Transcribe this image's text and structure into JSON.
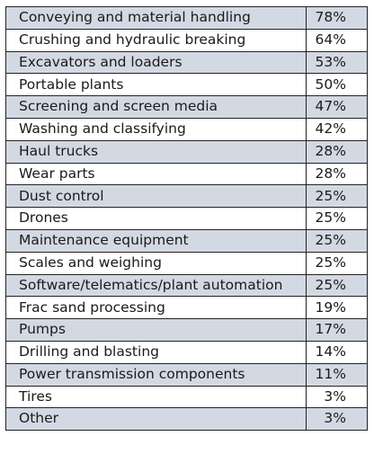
{
  "chart_data": {
    "type": "table",
    "colors": {
      "row_shade": "#d3d9e3",
      "row_plain": "#ffffff",
      "border": "#222222"
    },
    "rows": [
      {
        "label": "Conveying and material handling",
        "value": "78%"
      },
      {
        "label": "Crushing and hydraulic breaking",
        "value": "64%"
      },
      {
        "label": "Excavators and loaders",
        "value": "53%"
      },
      {
        "label": "Portable plants",
        "value": "50%"
      },
      {
        "label": "Screening and screen media",
        "value": "47%"
      },
      {
        "label": "Washing and classifying",
        "value": "42%"
      },
      {
        "label": "Haul trucks",
        "value": "28%"
      },
      {
        "label": "Wear parts",
        "value": "28%"
      },
      {
        "label": "Dust control",
        "value": "25%"
      },
      {
        "label": "Drones",
        "value": "25%"
      },
      {
        "label": "Maintenance equipment",
        "value": "25%"
      },
      {
        "label": "Scales and weighing",
        "value": "25%"
      },
      {
        "label": "Software/telematics/plant automation",
        "value": "25%"
      },
      {
        "label": "Frac sand processing",
        "value": "19%"
      },
      {
        "label": "Pumps",
        "value": "17%"
      },
      {
        "label": "Drilling and blasting",
        "value": "14%"
      },
      {
        "label": "Power transmission components",
        "value": "11%"
      },
      {
        "label": "Tires",
        "value": "3%"
      },
      {
        "label": "Other",
        "value": "3%"
      }
    ]
  }
}
